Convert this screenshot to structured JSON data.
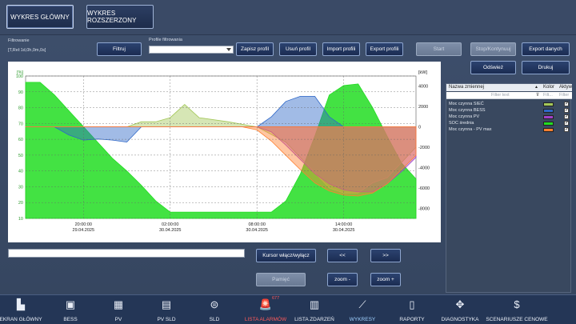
{
  "tabs": [
    {
      "label": "WYKRES GŁÓWNY",
      "active": true
    },
    {
      "label": "WYKRES ROZSZERZONY",
      "active": false
    }
  ],
  "filter": {
    "label": "Filtrowanie",
    "expression": "[T,Rel:1d,0h,0m,0s]",
    "button": "Filtruj",
    "profile_label": "Profile filtrowania",
    "profile_value": ""
  },
  "toolbar": {
    "save_profile": "Zapisz profil",
    "delete_profile": "Usuń profil",
    "import_profile": "Import profili",
    "export_profile": "Export profili",
    "start": "Start",
    "stop": "Stop/Kontynuuj",
    "export_data": "Export danych",
    "refresh": "Odśwież",
    "print": "Drukuj"
  },
  "chart_data": {
    "type": "area",
    "left_axis": {
      "unit": "[%]",
      "ticks": [
        10,
        20,
        30,
        40,
        50,
        60,
        70,
        80,
        90,
        100
      ],
      "range": [
        10,
        100
      ]
    },
    "right_axis": {
      "unit": "[kW]",
      "ticks": [
        -8000,
        -6000,
        -4000,
        -2000,
        0,
        2000,
        4000
      ],
      "range": [
        -9000,
        5000
      ]
    },
    "x_ticks": [
      {
        "time": "20:00:00",
        "date": "29.04.2025"
      },
      {
        "time": "02:00:00",
        "date": "30.04.2025"
      },
      {
        "time": "08:00:00",
        "date": "30.04.2025"
      },
      {
        "time": "14:00:00",
        "date": "30.04.2025"
      }
    ],
    "x_range_hours": [
      16,
      19.5
    ],
    "series": [
      {
        "name": "SOC średnia",
        "axis": "left",
        "color": "#22dd22",
        "x": [
          16,
          17,
          18,
          19,
          20,
          21,
          22,
          23,
          24,
          25,
          26,
          27,
          28,
          29,
          30,
          31,
          32,
          33,
          34,
          35,
          36,
          37,
          38,
          39,
          40,
          41,
          42,
          43
        ],
        "y": [
          96,
          96,
          88,
          78,
          68,
          58,
          48,
          40,
          31,
          21,
          14,
          14,
          14,
          14,
          14,
          14,
          14,
          14,
          21,
          38,
          62,
          88,
          94,
          95,
          80,
          62,
          45,
          35
        ]
      },
      {
        "name": "Moc czynna SIEĆ",
        "axis": "right",
        "color": "#a4c85a",
        "x": [
          16,
          21,
          23,
          24,
          25,
          26,
          27,
          28,
          30,
          32,
          34,
          35,
          36,
          37,
          38,
          39,
          40,
          41,
          42,
          43
        ],
        "y": [
          0,
          0,
          0,
          500,
          500,
          900,
          2200,
          900,
          500,
          0,
          -1500,
          -3000,
          -4500,
          -6000,
          -6500,
          -6500,
          -5500,
          -5000,
          -3500,
          -2000
        ]
      },
      {
        "name": "Moc czynna BESS",
        "axis": "right",
        "color": "#2f68c8",
        "x": [
          16,
          18,
          19,
          20,
          21,
          22,
          23,
          24,
          26,
          28,
          30,
          32,
          33,
          34,
          35,
          36,
          37,
          38,
          40,
          42,
          43
        ],
        "y": [
          0,
          0,
          -800,
          -1300,
          -1200,
          -1300,
          -1500,
          0,
          0,
          0,
          0,
          0,
          1000,
          2500,
          3000,
          3000,
          1000,
          0,
          0,
          0,
          0
        ]
      },
      {
        "name": "Moc czynna PV",
        "axis": "right",
        "color": "#a040c8",
        "x": [
          16,
          32,
          33,
          34,
          35,
          36,
          37,
          38,
          39,
          40,
          41,
          42,
          43
        ],
        "y": [
          0,
          0,
          -500,
          -1800,
          -3200,
          -4600,
          -5600,
          -6200,
          -6400,
          -6400,
          -5600,
          -4400,
          -3000
        ]
      },
      {
        "name": "Moc czynna - PV max",
        "axis": "right",
        "color": "#ff8030",
        "x": [
          16,
          31,
          32,
          33,
          34,
          35,
          36,
          37,
          38,
          39,
          40,
          41,
          42,
          43
        ],
        "y": [
          0,
          0,
          -300,
          -1400,
          -2800,
          -4200,
          -5500,
          -6300,
          -6700,
          -6800,
          -6500,
          -5600,
          -4200,
          -2800
        ]
      }
    ],
    "grid": true
  },
  "legend": {
    "col_name": "Nazwa zmiennej",
    "col_color": "Kolor",
    "col_active": "Aktyw",
    "filter_placeholder": "Filter text",
    "filter_small": "Filt...",
    "filter_small2": "Filter",
    "rows": [
      {
        "name": "Moc czynna SIEĆ",
        "color": "#a4c85a"
      },
      {
        "name": "Moc czynna BESS",
        "color": "#2f68c8"
      },
      {
        "name": "Moc czynna PV",
        "color": "#a040c8"
      },
      {
        "name": "SOC średnia",
        "color": "#22dd22"
      },
      {
        "name": "Moc czynna - PV max",
        "color": "#ff8030"
      }
    ]
  },
  "cursor": {
    "toggle": "Kursor włącz/wyłącz",
    "prev": "<<",
    "next": ">>",
    "memory": "Pamięć",
    "zoom_out": "zoom -",
    "zoom_in": "zoom +"
  },
  "nav": {
    "alarm_count": "677",
    "items": [
      {
        "label": "EKRAN GŁÓWNY",
        "icon": "▙"
      },
      {
        "label": "BESS",
        "icon": "▣"
      },
      {
        "label": "PV",
        "icon": "▦"
      },
      {
        "label": "PV SLD",
        "icon": "▤"
      },
      {
        "label": "SLD",
        "icon": "⊜"
      },
      {
        "label": "LISTA ALARMÓW",
        "icon": "🚨"
      },
      {
        "label": "LISTA ZDARZEŃ",
        "icon": "▥"
      },
      {
        "label": "WYKRESY",
        "icon": "⟋"
      },
      {
        "label": "RAPORTY",
        "icon": "▯"
      },
      {
        "label": "DIAGNOSTYKA",
        "icon": "✥"
      },
      {
        "label": "SCENARIUSZE CENOWE",
        "icon": "$"
      }
    ]
  }
}
